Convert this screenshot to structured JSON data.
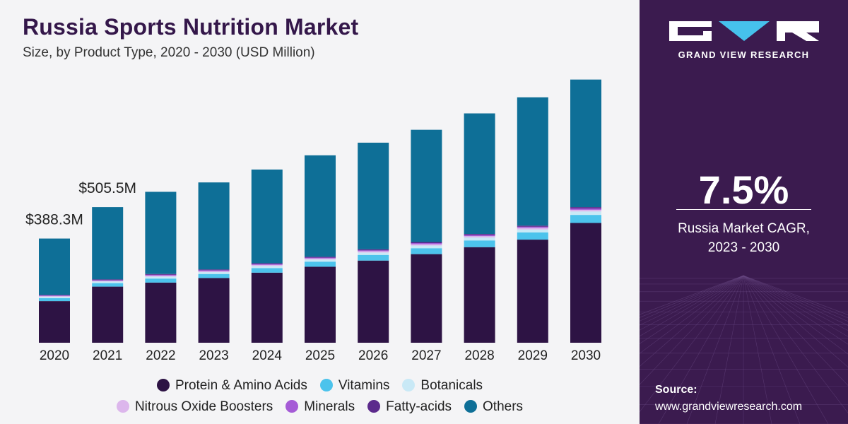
{
  "header": {
    "title": "Russia Sports Nutrition Market",
    "subtitle": "Size, by Product Type, 2020 - 2030 (USD Million)"
  },
  "colors": {
    "protein": "#2d1344",
    "vitamins": "#4cc3ec",
    "botanicals": "#c9e9f6",
    "nitrous": "#dcb6ec",
    "minerals": "#a55bd6",
    "fatty": "#5c2a8c",
    "others": "#0e6f97"
  },
  "chart_data": {
    "type": "bar",
    "stacked": true,
    "categories": [
      "2020",
      "2021",
      "2022",
      "2023",
      "2024",
      "2025",
      "2026",
      "2027",
      "2028",
      "2029",
      "2030"
    ],
    "series": [
      {
        "name": "Protein & Amino Acids",
        "color": "#2d1344",
        "values": [
          155,
          209,
          224,
          241,
          261,
          283,
          306,
          330,
          356,
          384,
          446
        ]
      },
      {
        "name": "Vitamins",
        "color": "#4cc3ec",
        "values": [
          11,
          13,
          15,
          15,
          17,
          19,
          21,
          22,
          25,
          27,
          30
        ]
      },
      {
        "name": "Botanicals",
        "color": "#c9e9f6",
        "values": [
          5,
          6,
          7,
          7,
          8,
          8,
          9,
          10,
          11,
          11,
          13
        ]
      },
      {
        "name": "Nitrous Oxide Boosters",
        "color": "#dcb6ec",
        "values": [
          3,
          3,
          4,
          4,
          4,
          4,
          5,
          5,
          5,
          6,
          6
        ]
      },
      {
        "name": "Minerals",
        "color": "#a55bd6",
        "values": [
          2,
          2,
          3,
          3,
          3,
          3,
          3,
          4,
          4,
          4,
          5
        ]
      },
      {
        "name": "Fatty-acids",
        "color": "#5c2a8c",
        "values": [
          2,
          3,
          3,
          3,
          3,
          3,
          4,
          4,
          4,
          4,
          5
        ]
      },
      {
        "name": "Others",
        "color": "#0e6f97",
        "values": [
          210,
          269,
          306,
          324,
          349,
          378,
          397,
          418,
          449,
          478,
          475
        ]
      }
    ],
    "annotations": [
      {
        "category": "2020",
        "label": "$388.3M"
      },
      {
        "category": "2021",
        "label": "$505.5M"
      }
    ],
    "xlabel": "",
    "ylabel": "",
    "ylim": [
      0,
      1000
    ],
    "grid": false,
    "legend_position": "bottom"
  },
  "sidebar": {
    "brand": "GRAND VIEW RESEARCH",
    "cagr_value": "7.5%",
    "cagr_label_line1": "Russia Market CAGR,",
    "cagr_label_line2": "2023 - 2030",
    "source_label": "Source:",
    "source_url": "www.grandviewresearch.com"
  }
}
